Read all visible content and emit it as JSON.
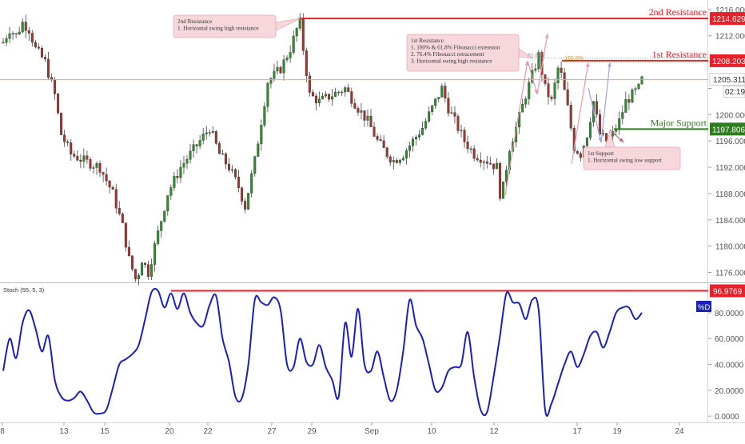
{
  "chart_data": [
    {
      "type": "candlestick",
      "symbol_hint": "Gold price (daily-intraday candles)",
      "y_axis_ticks": [
        1216.0,
        1212.0,
        1208.0,
        1204.0,
        1200.0,
        1196.0,
        1192.0,
        1188.0,
        1184.0,
        1180.0,
        1176.0
      ],
      "y_axis_ticks_labels": [
        "1216.000",
        "1212.000",
        "1208.000",
        "",
        "1200.000",
        "1196.000",
        "1192.000",
        "1188.000",
        "1184.000",
        "1180.000",
        "1176.000"
      ],
      "ylim": [
        1174.6,
        1217.2
      ],
      "x_axis_labels": [
        "8",
        "13",
        "15",
        "20",
        "22",
        "27",
        "29",
        "Sep",
        "10",
        "12",
        "17",
        "19",
        "24"
      ],
      "last_price": "1205.311",
      "countdown": "02:19",
      "levels": [
        {
          "name": "2nd Resistance",
          "value": "1214.629",
          "color": "#e8202a"
        },
        {
          "name": "1st Resistance",
          "value": "1208.203",
          "color": "#e8202a"
        },
        {
          "name": "Major Support",
          "value": "1197.806",
          "color": "#2e7d1e"
        }
      ],
      "fib_labels": [
        "61.8%",
        "100.0%"
      ],
      "annotations": [
        {
          "id": "res2",
          "lines": [
            "2nd Resistance",
            "1. Horizontal swing high resistance"
          ]
        },
        {
          "id": "res1",
          "lines": [
            "1st Resistance",
            "1. 100% & 61.8% Fibonacci extension",
            "2. 76.4% Fibonacci retracement",
            "3. Horizontal swing high resistance"
          ]
        },
        {
          "id": "sup1",
          "lines": [
            "1st Support",
            "1. Horizontal swing low support"
          ]
        }
      ],
      "price_path": [
        [
          0,
          1211
        ],
        [
          2,
          1213
        ],
        [
          4,
          1212
        ],
        [
          6,
          1214
        ],
        [
          8,
          1213
        ],
        [
          10,
          1210
        ],
        [
          13,
          1208
        ],
        [
          16,
          1203
        ],
        [
          18,
          1197
        ],
        [
          21,
          1194
        ],
        [
          25,
          1193
        ],
        [
          30,
          1192
        ],
        [
          34,
          1188
        ],
        [
          37,
          1183
        ],
        [
          39,
          1178
        ],
        [
          41,
          1175
        ],
        [
          42,
          1176
        ],
        [
          43,
          1178
        ],
        [
          44,
          1177
        ],
        [
          45,
          1176
        ],
        [
          48,
          1182
        ],
        [
          51,
          1188
        ],
        [
          55,
          1192
        ],
        [
          58,
          1194
        ],
        [
          61,
          1196
        ],
        [
          64,
          1198
        ],
        [
          67,
          1194
        ],
        [
          70,
          1192
        ],
        [
          73,
          1189
        ],
        [
          75,
          1186
        ],
        [
          78,
          1193
        ],
        [
          82,
          1205
        ],
        [
          86,
          1207
        ],
        [
          89,
          1210
        ],
        [
          91,
          1213
        ],
        [
          92,
          1214
        ],
        [
          93,
          1210
        ],
        [
          95,
          1203
        ],
        [
          98,
          1202
        ],
        [
          102,
          1203
        ],
        [
          106,
          1204
        ],
        [
          110,
          1201
        ],
        [
          113,
          1199
        ],
        [
          116,
          1196
        ],
        [
          119,
          1194
        ],
        [
          121,
          1193
        ],
        [
          124,
          1194
        ],
        [
          127,
          1196
        ],
        [
          130,
          1198
        ],
        [
          133,
          1201
        ],
        [
          136,
          1204
        ],
        [
          138,
          1201
        ],
        [
          140,
          1199
        ],
        [
          143,
          1196
        ],
        [
          146,
          1194
        ],
        [
          150,
          1193
        ],
        [
          153,
          1192
        ],
        [
          154,
          1188
        ],
        [
          155,
          1189
        ],
        [
          157,
          1195
        ],
        [
          159,
          1198
        ],
        [
          162,
          1203
        ],
        [
          164,
          1206
        ],
        [
          166,
          1209
        ],
        [
          168,
          1204
        ],
        [
          170,
          1202
        ],
        [
          172,
          1207
        ],
        [
          173,
          1206
        ],
        [
          175,
          1201
        ],
        [
          177,
          1195
        ],
        [
          179,
          1194
        ],
        [
          181,
          1197
        ],
        [
          183,
          1202
        ],
        [
          185,
          1197
        ],
        [
          187,
          1196
        ],
        [
          189,
          1197
        ],
        [
          191,
          1199
        ],
        [
          193,
          1202
        ],
        [
          195,
          1203
        ],
        [
          197,
          1204
        ],
        [
          198,
          1205.3
        ]
      ]
    },
    {
      "type": "line",
      "title": "Stoch (55, 5, 3)",
      "series": [
        {
          "name": "%D",
          "color": "#1a1fbf"
        }
      ],
      "y_axis_ticks": [
        0,
        20,
        40,
        60,
        80
      ],
      "y_axis_ticks_labels": [
        "0.0000",
        "20.0000",
        "40.0000",
        "60.0000",
        "80.0000"
      ],
      "ylim": [
        -3,
        101
      ],
      "level": "96.9769",
      "x": [
        0,
        2,
        4,
        6,
        8,
        10,
        12,
        14,
        16,
        18,
        20,
        22,
        24,
        26,
        28,
        30,
        32,
        34,
        36,
        38,
        40,
        42,
        44,
        46,
        48,
        50,
        52,
        54,
        56,
        58,
        60,
        62,
        64,
        66,
        68,
        70,
        72,
        74,
        76,
        78,
        80,
        82,
        84,
        86,
        88,
        90,
        92,
        94,
        96,
        98,
        100,
        102,
        104,
        106,
        108,
        110,
        112,
        114,
        116,
        118,
        120,
        122,
        124,
        126,
        128,
        130,
        132,
        134,
        136,
        138,
        140,
        142,
        144,
        146,
        148,
        150,
        152,
        154,
        156,
        158,
        160,
        162,
        164,
        166,
        168,
        170,
        172,
        174,
        176,
        178,
        180,
        182,
        184,
        186,
        188,
        190,
        192,
        194,
        196,
        198
      ],
      "y": [
        35,
        60,
        45,
        72,
        82,
        68,
        50,
        62,
        28,
        15,
        12,
        14,
        19,
        12,
        3,
        2,
        5,
        22,
        40,
        44,
        48,
        55,
        75,
        96,
        97,
        84,
        95,
        83,
        95,
        80,
        72,
        70,
        86,
        93,
        60,
        42,
        15,
        14,
        40,
        90,
        88,
        86,
        92,
        82,
        40,
        38,
        60,
        42,
        40,
        55,
        38,
        28,
        15,
        72,
        46,
        83,
        40,
        35,
        50,
        30,
        12,
        20,
        50,
        90,
        70,
        60,
        40,
        20,
        22,
        35,
        38,
        40,
        65,
        30,
        5,
        3,
        30,
        62,
        95,
        88,
        87,
        75,
        90,
        82,
        5,
        10,
        25,
        40,
        50,
        38,
        48,
        62,
        65,
        53,
        65,
        80,
        84,
        84,
        75,
        80
      ]
    }
  ]
}
